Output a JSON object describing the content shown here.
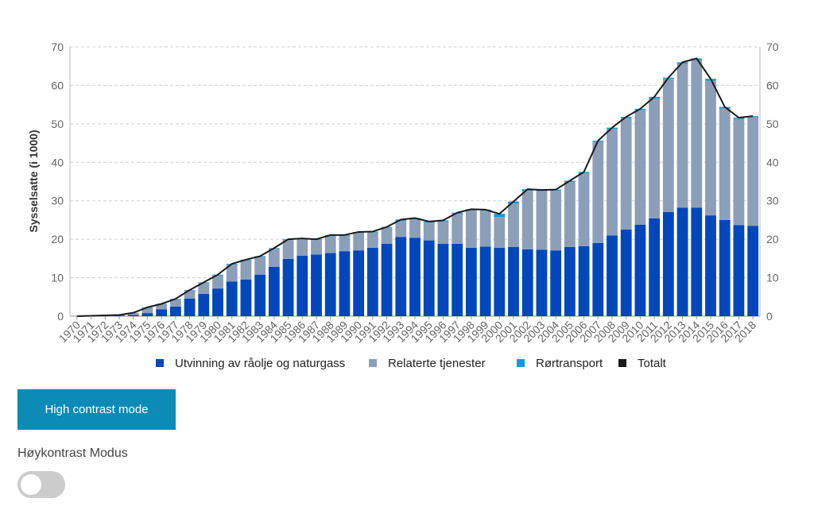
{
  "chart_data": {
    "type": "bar",
    "stacked": true,
    "ylabel": "Sysselsatte (i 1000)",
    "ylim": [
      0,
      70
    ],
    "yticks": [
      0,
      10,
      20,
      30,
      40,
      50,
      60,
      70
    ],
    "dual_y_axis": true,
    "grid": "horizontal dashed",
    "legend_position": "bottom",
    "categories": [
      "1970",
      "1971",
      "1972",
      "1973",
      "1974",
      "1975",
      "1976",
      "1977",
      "1978",
      "1979",
      "1980",
      "1981",
      "1982",
      "1983",
      "1984",
      "1985",
      "1986",
      "1987",
      "1988",
      "1989",
      "1990",
      "1991",
      "1992",
      "1993",
      "1994",
      "1995",
      "1996",
      "1997",
      "1998",
      "1999",
      "2000",
      "2001",
      "2002",
      "2003",
      "2004",
      "2005",
      "2006",
      "2007",
      "2008",
      "2009",
      "2010",
      "2011",
      "2012",
      "2013",
      "2014",
      "2015",
      "2016",
      "2017",
      "2018"
    ],
    "series": [
      {
        "name": "Utvinning av råolje og naturgass",
        "kind": "bar",
        "color": "#0047bb",
        "values": [
          0,
          0,
          0,
          0.1,
          0.3,
          0.8,
          1.8,
          2.5,
          4.6,
          5.8,
          7.2,
          9.0,
          9.5,
          10.8,
          12.8,
          14.9,
          15.7,
          16.0,
          16.4,
          16.9,
          17.1,
          17.8,
          18.8,
          20.6,
          20.4,
          19.7,
          18.8,
          18.8,
          17.8,
          18.1,
          17.8,
          18.0,
          17.4,
          17.3,
          17.1,
          18.0,
          18.2,
          19.0,
          21.0,
          22.5,
          23.8,
          25.4,
          27.1,
          28.2,
          28.2,
          26.2,
          25.0,
          23.7,
          23.5
        ]
      },
      {
        "name": "Relaterte tjenester",
        "kind": "bar",
        "color": "#8c9fb9",
        "values": [
          0,
          0.1,
          0.2,
          0.2,
          0.6,
          1.4,
          1.3,
          1.9,
          2.1,
          2.8,
          3.4,
          4.4,
          5.0,
          4.6,
          4.7,
          4.9,
          4.3,
          3.8,
          4.5,
          4.0,
          4.6,
          4.0,
          4.2,
          4.2,
          4.8,
          4.6,
          5.8,
          7.8,
          9.7,
          9.3,
          8.0,
          11.3,
          15.2,
          15.2,
          15.5,
          16.9,
          19.0,
          26.3,
          27.7,
          29.0,
          29.8,
          31.2,
          34.6,
          37.4,
          38.4,
          35.0,
          29.0,
          27.6,
          28.2
        ]
      },
      {
        "name": "Rørtransport",
        "kind": "bar",
        "color": "#0f9ae0",
        "values": [
          0,
          0,
          0,
          0,
          0,
          0.1,
          0.1,
          0.1,
          0.1,
          0.2,
          0.2,
          0.2,
          0.2,
          0.2,
          0.2,
          0.2,
          0.2,
          0.2,
          0.2,
          0.2,
          0.2,
          0.2,
          0.2,
          0.3,
          0.3,
          0.3,
          0.3,
          0.3,
          0.3,
          0.3,
          0.8,
          0.5,
          0.4,
          0.3,
          0.3,
          0.3,
          0.3,
          0.3,
          0.3,
          0.3,
          0.3,
          0.4,
          0.3,
          0.4,
          0.4,
          0.5,
          0.4,
          0.3,
          0.3
        ]
      },
      {
        "name": "Totalt",
        "kind": "line",
        "color": "#1a1a1a",
        "values": [
          0,
          0.1,
          0.2,
          0.3,
          0.9,
          2.3,
          3.2,
          4.5,
          6.8,
          8.8,
          10.8,
          13.6,
          14.7,
          15.6,
          17.7,
          20.0,
          20.2,
          20.0,
          21.1,
          21.1,
          21.9,
          22.0,
          23.2,
          25.1,
          25.5,
          24.6,
          24.9,
          26.9,
          27.8,
          27.7,
          26.6,
          29.8,
          33.0,
          32.8,
          32.9,
          35.2,
          37.5,
          45.6,
          49.0,
          51.8,
          53.9,
          57.0,
          62.0,
          66.0,
          67.0,
          61.7,
          54.4,
          51.6,
          52.0
        ]
      }
    ]
  },
  "controls": {
    "high_contrast_button": "High contrast mode",
    "toggle_label": "Høykontrast Modus",
    "button_color": "#0d8bb7"
  }
}
